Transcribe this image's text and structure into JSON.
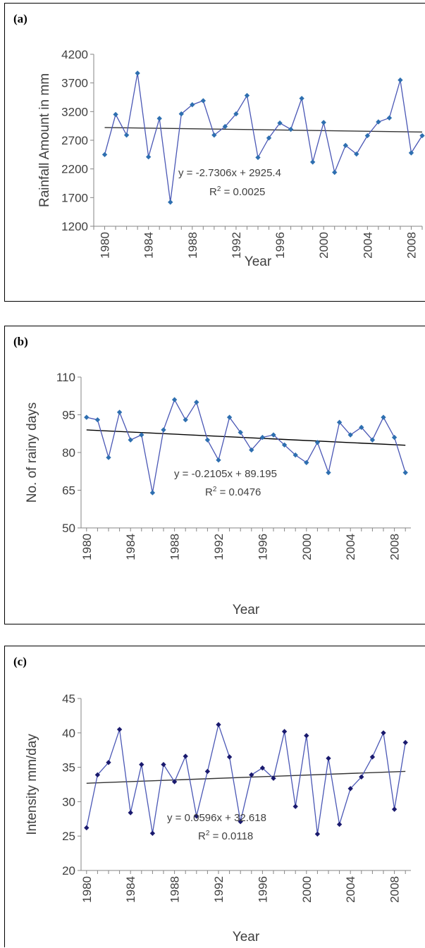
{
  "chart_data": [
    {
      "label": "(a)",
      "type": "line",
      "ylabel": "Rainfall Amount in mm",
      "xlabel": "Year",
      "ylim": [
        1200,
        4200
      ],
      "yticks": [
        1200,
        1700,
        2200,
        2700,
        3200,
        3700,
        4200
      ],
      "xlim": [
        1979,
        2009
      ],
      "xticks": [
        1980,
        1984,
        1988,
        1992,
        1996,
        2000,
        2004,
        2008
      ],
      "series": [
        {
          "color": "#4a57b5",
          "marker": "#2e6fb0",
          "x": [
            1980,
            1981,
            1982,
            1983,
            1984,
            1985,
            1986,
            1987,
            1988,
            1989,
            1990,
            1991,
            1992,
            1993,
            1994,
            1995,
            1996,
            1997,
            1998,
            1999,
            2000,
            2001,
            2002,
            2003,
            2004,
            2005,
            2006,
            2007,
            2008,
            2009
          ],
          "y": [
            2450,
            3150,
            2790,
            3870,
            2410,
            3080,
            1620,
            3160,
            3320,
            3390,
            2790,
            2940,
            3160,
            3480,
            2400,
            2740,
            3000,
            2890,
            3430,
            2320,
            3010,
            2140,
            2610,
            2460,
            2780,
            3020,
            3090,
            3750,
            2480,
            2780
          ]
        }
      ],
      "trend": {
        "slope": -2.7306,
        "intercept": 2925.4,
        "color": "#333333"
      },
      "equation": "y = -2.7306x + 2925.4",
      "r2_prefix": "R",
      "r2_value": "= 0.0025"
    },
    {
      "label": "(b)",
      "type": "line",
      "ylabel": "No. of rainy days",
      "xlabel": "Year",
      "ylim": [
        50,
        110
      ],
      "yticks": [
        50,
        65,
        80,
        95,
        110
      ],
      "xlim": [
        1979.5,
        2009.5
      ],
      "xticks": [
        1980,
        1984,
        1988,
        1992,
        1996,
        2000,
        2004,
        2008
      ],
      "series": [
        {
          "color": "#4a57b5",
          "marker": "#2e6fb0",
          "x": [
            1980,
            1981,
            1982,
            1983,
            1984,
            1985,
            1986,
            1987,
            1988,
            1989,
            1990,
            1991,
            1992,
            1993,
            1994,
            1995,
            1996,
            1997,
            1998,
            1999,
            2000,
            2001,
            2002,
            2003,
            2004,
            2005,
            2006,
            2007,
            2008,
            2009
          ],
          "y": [
            94,
            93,
            78,
            96,
            85,
            87,
            64,
            89,
            101,
            93,
            100,
            85,
            77,
            94,
            88,
            81,
            86,
            87,
            83,
            79,
            76,
            84,
            72,
            92,
            87,
            90,
            85,
            94,
            86,
            72
          ]
        }
      ],
      "trend": {
        "slope": -0.2105,
        "intercept": 89.195,
        "color": "#000000"
      },
      "equation": "y = -0.2105x + 89.195",
      "r2_prefix": "R",
      "r2_value": "= 0.0476"
    },
    {
      "label": "(c)",
      "type": "line",
      "ylabel": "Intensity mm/day",
      "xlabel": "Year",
      "ylim": [
        20,
        45
      ],
      "yticks": [
        20,
        25,
        30,
        35,
        40,
        45
      ],
      "xlim": [
        1979.5,
        2009.5
      ],
      "xticks": [
        1980,
        1984,
        1988,
        1992,
        1996,
        2000,
        2004,
        2008
      ],
      "series": [
        {
          "color": "#4a57b5",
          "marker": "#1a1a6e",
          "x": [
            1980,
            1981,
            1982,
            1983,
            1984,
            1985,
            1986,
            1987,
            1988,
            1989,
            1990,
            1991,
            1992,
            1993,
            1994,
            1995,
            1996,
            1997,
            1998,
            1999,
            2000,
            2001,
            2002,
            2003,
            2004,
            2005,
            2006,
            2007,
            2008,
            2009
          ],
          "y": [
            26.2,
            33.9,
            35.7,
            40.5,
            28.4,
            35.4,
            25.4,
            35.4,
            32.9,
            36.6,
            27.9,
            34.4,
            41.2,
            36.5,
            27.1,
            33.9,
            34.9,
            33.4,
            40.2,
            29.3,
            39.6,
            25.3,
            36.3,
            26.7,
            31.9,
            33.6,
            36.5,
            40.0,
            28.9,
            38.6
          ]
        }
      ],
      "trend": {
        "slope": 0.0596,
        "intercept": 32.618,
        "color": "#333333"
      },
      "equation": "y = 0.0596x + 32.618",
      "r2_prefix": "R",
      "r2_value": "= 0.0118"
    }
  ]
}
